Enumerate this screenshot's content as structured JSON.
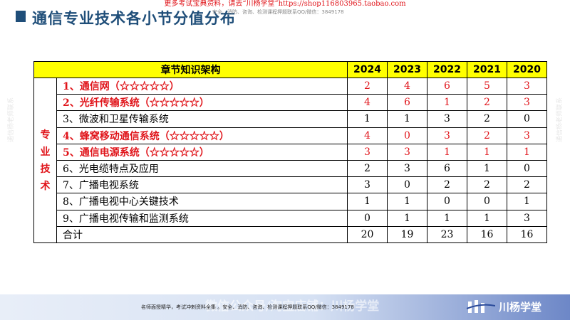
{
  "top_watermark": "更多考试宝典资料，请去“川杨学堂”https://shop116803965.taobao.com",
  "title": "通信专业技术各小节分值分布",
  "sub_watermark": "安全、消防、咨询、检测课程押题联系QQ/微信：3849178",
  "side_watermark": "通信杨老师联系",
  "table": {
    "header_label": "章节知识架构",
    "years": [
      "2024",
      "2023",
      "2022",
      "2021",
      "2020"
    ],
    "section_label": [
      "专",
      "业",
      "技",
      "术"
    ],
    "rows": [
      {
        "name": "1、通信网（☆☆☆☆☆）",
        "highlight": true,
        "values": [
          "2",
          "4",
          "6",
          "5",
          "3"
        ]
      },
      {
        "name": "2、光纤传输系统（☆☆☆☆☆）",
        "highlight": true,
        "values": [
          "4",
          "6",
          "1",
          "2",
          "3"
        ]
      },
      {
        "name": "3、微波和卫星传输系统",
        "highlight": false,
        "values": [
          "1",
          "1",
          "3",
          "2",
          "0"
        ]
      },
      {
        "name": "4、蜂窝移动通信系统（☆☆☆☆☆）",
        "highlight": true,
        "values": [
          "4",
          "0",
          "3",
          "2",
          "3"
        ]
      },
      {
        "name": "5、通信电源系统（☆☆☆☆☆）",
        "highlight": true,
        "values": [
          "3",
          "3",
          "1",
          "1",
          "1"
        ]
      },
      {
        "name": "6、光电缆特点及应用",
        "highlight": false,
        "values": [
          "2",
          "3",
          "6",
          "1",
          "0"
        ]
      },
      {
        "name": "7、广播电视系统",
        "highlight": false,
        "values": [
          "3",
          "0",
          "2",
          "2",
          "2"
        ]
      },
      {
        "name": "8、广播电视中心关键技术",
        "highlight": false,
        "values": [
          "1",
          "1",
          "0",
          "0",
          "1"
        ]
      },
      {
        "name": "9、广播电视传输和监测系统",
        "highlight": false,
        "values": [
          "0",
          "1",
          "1",
          "1",
          "3"
        ]
      }
    ],
    "total_label": "合计",
    "totals": [
      "20",
      "19",
      "23",
      "16",
      "16"
    ]
  },
  "footer": {
    "text": "名师面授精华，考试冲刺资料全集 。安全、消防、咨询、检测课程押题联系QQ/微信：3849178",
    "big_text": "微信公众号/淘宝店铺：川杨学堂",
    "brand": "川杨学堂"
  },
  "colors": {
    "title": "#1f4e79",
    "header_bg": "#ffff00",
    "highlight": "#e0141a"
  }
}
